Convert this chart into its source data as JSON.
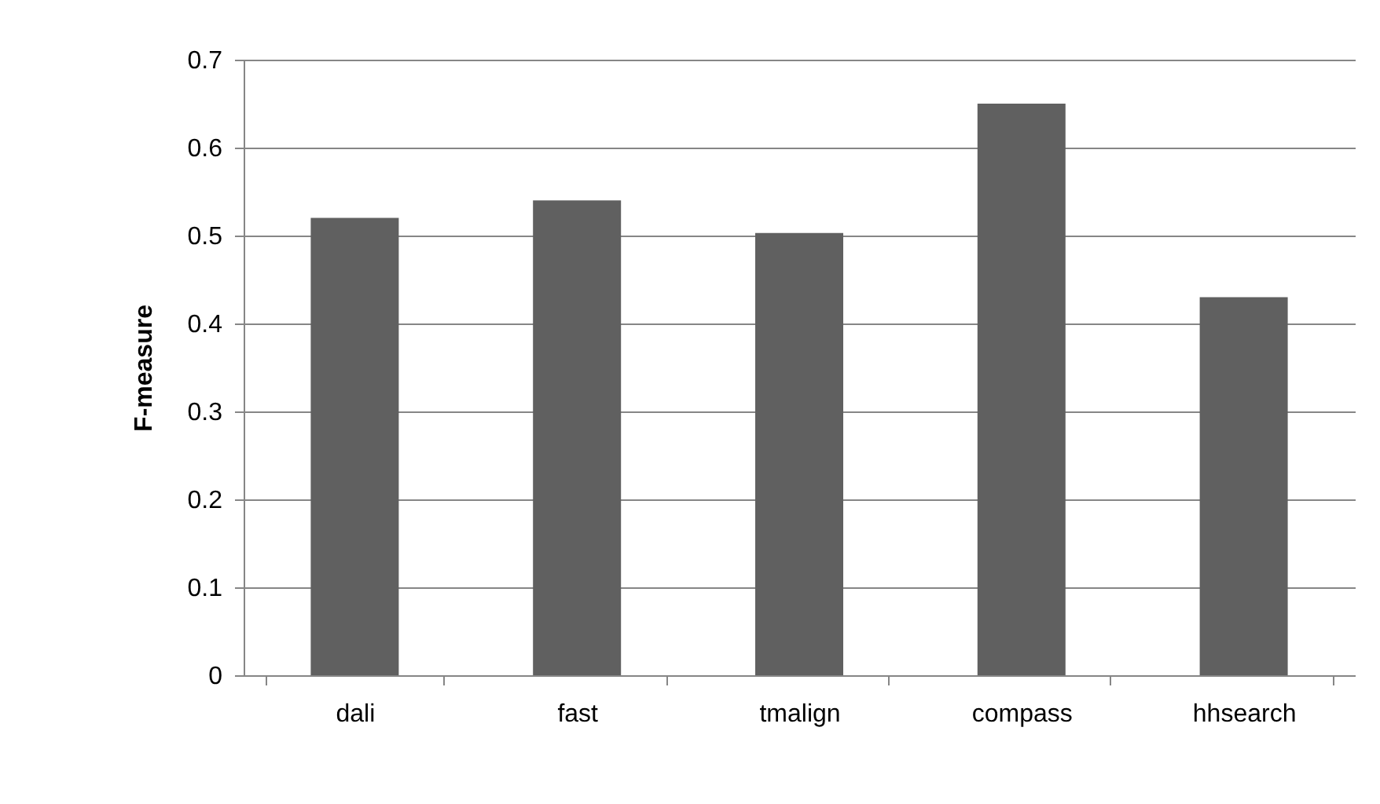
{
  "chart_data": {
    "type": "bar",
    "ylabel": "F-measure",
    "categories": [
      "dali",
      "fast",
      "tmalign",
      "compass",
      "hhsearch"
    ],
    "series": [
      {
        "color": "#606060",
        "values": [
          0.52,
          0.54,
          0.503,
          0.65,
          0.43
        ]
      }
    ],
    "ylim": [
      0,
      0.7
    ],
    "yticks": [
      0,
      0.1,
      0.2,
      0.3,
      0.4,
      0.5,
      0.6,
      0.7
    ],
    "grid": "y",
    "legend": false
  }
}
